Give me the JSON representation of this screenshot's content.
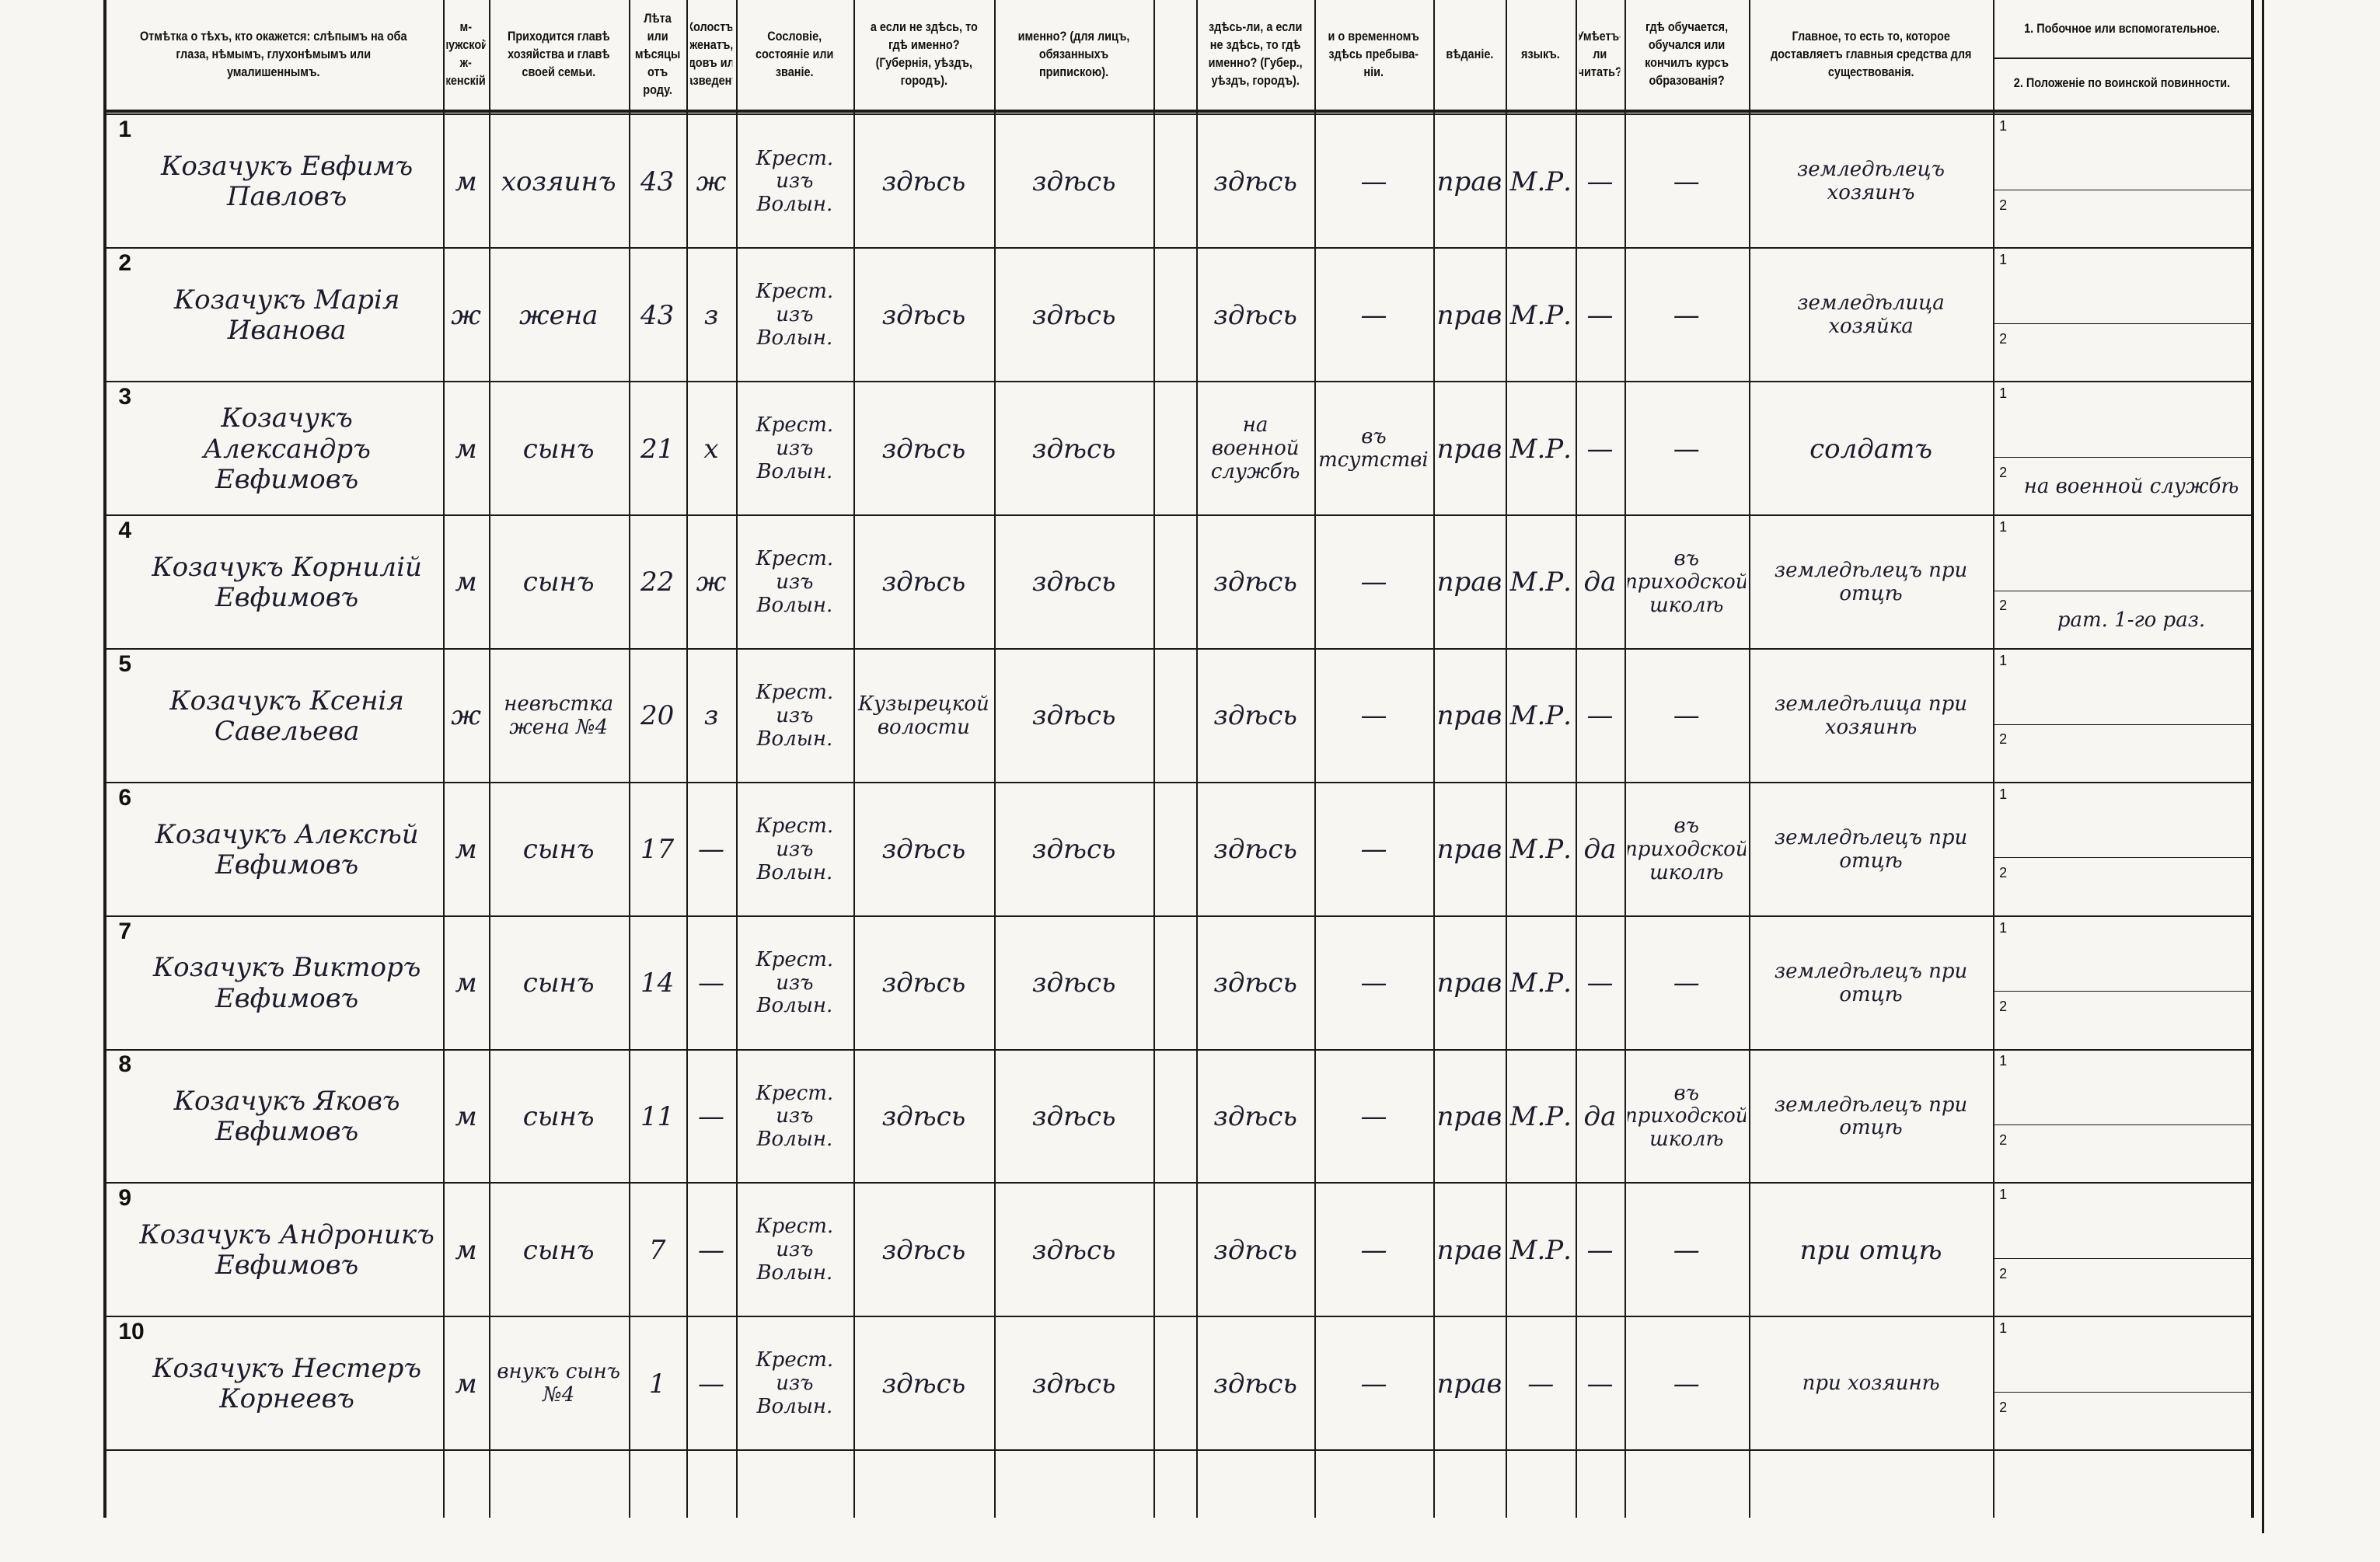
{
  "header": {
    "columns": [
      "Отмѣтка о тѣхъ, кто окажется: слѣпымъ на оба глаза, нѣмымъ, глухонѣмымъ или умалишеннымъ.",
      "м-мужской. ж-женскій.",
      "Приходится главѣ хозяйства и главѣ своей семьи.",
      "Лѣта или мѣсяцы отъ роду.",
      "Холостъ, женатъ, вдовъ или разведенъ.",
      "Сословіе, состояніе или званіе.",
      "а если не здѣсь, то гдѣ именно? (Губернія, уѣздъ, городъ).",
      "именно? (для лицъ, обязанныхъ припискою).",
      "здѣсь-ли, а если не здѣсь, то гдѣ именно? (Губер., уѣздъ, городъ).",
      "и о временномъ здѣсь пребыва-ніи.",
      "вѣданіе.",
      "языкъ.",
      "Умѣетъ-ли читать?",
      "гдѣ обучается, обучался или кончилъ курсъ образованія?",
      "Главное, то есть то, которое доставляетъ главныя средства для существованія."
    ],
    "secondary": "1. Побочное или вспомогательное.",
    "military": "2. Положеніе по воинской повинности.",
    "sub_labels": [
      "1",
      "2"
    ]
  },
  "rows": [
    {
      "number": "1",
      "name": "Козачукъ Евфимъ Павловъ",
      "sex": "м",
      "relation": "хозяинъ",
      "age": "43",
      "marital": "ж",
      "estate": "Крест. изъ Волын.",
      "birthplace": "здѣсь",
      "registered": "здѣсь",
      "residence": "здѣсь",
      "temporary": "—",
      "religion": "прав",
      "language": "М.Р.",
      "literacy": "—",
      "education": "—",
      "occupation": "земледѣлецъ хозяинъ"
    },
    {
      "number": "2",
      "name": "Козачукъ Марія Иванова",
      "sex": "ж",
      "relation": "жена",
      "age": "43",
      "marital": "з",
      "estate": "Крест. изъ Волын.",
      "birthplace": "здѣсь",
      "registered": "здѣсь",
      "residence": "здѣсь",
      "temporary": "—",
      "religion": "прав",
      "language": "М.Р.",
      "literacy": "—",
      "education": "—",
      "occupation": "земледѣлица хозяйка"
    },
    {
      "number": "3",
      "name": "Козачукъ Александръ Евфимовъ",
      "sex": "м",
      "relation": "сынъ",
      "age": "21",
      "marital": "х",
      "estate": "Крест. изъ Волын.",
      "birthplace": "здѣсь",
      "registered": "здѣсь",
      "residence": "на военной службѣ",
      "temporary": "въ отсутствіи",
      "religion": "прав",
      "language": "М.Р.",
      "literacy": "—",
      "education": "—",
      "occupation": "солдатъ",
      "military": "на военной службѣ"
    },
    {
      "number": "4",
      "name": "Козачукъ Корнилій Евфимовъ",
      "sex": "м",
      "relation": "сынъ",
      "age": "22",
      "marital": "ж",
      "estate": "Крест. изъ Волын.",
      "birthplace": "здѣсь",
      "registered": "здѣсь",
      "residence": "здѣсь",
      "temporary": "—",
      "religion": "прав",
      "language": "М.Р.",
      "literacy": "да",
      "education": "въ приходской школѣ",
      "occupation": "земледѣлецъ при отцѣ",
      "military": "рат. 1-го раз."
    },
    {
      "number": "5",
      "name": "Козачукъ Ксенія Савельева",
      "sex": "ж",
      "relation": "невѣстка жена №4",
      "age": "20",
      "marital": "з",
      "estate": "Крест. изъ Волын.",
      "birthplace": "Кузырецкой волости",
      "registered": "здѣсь",
      "residence": "здѣсь",
      "temporary": "—",
      "religion": "прав",
      "language": "М.Р.",
      "literacy": "—",
      "education": "—",
      "occupation": "земледѣлица при хозяинѣ"
    },
    {
      "number": "6",
      "name": "Козачукъ Алексѣй Евфимовъ",
      "sex": "м",
      "relation": "сынъ",
      "age": "17",
      "marital": "—",
      "estate": "Крест. изъ Волын.",
      "birthplace": "здѣсь",
      "registered": "здѣсь",
      "residence": "здѣсь",
      "temporary": "—",
      "religion": "прав",
      "language": "М.Р.",
      "literacy": "да",
      "education": "въ приходской школѣ",
      "occupation": "земледѣлецъ при отцѣ"
    },
    {
      "number": "7",
      "name": "Козачукъ Викторъ Евфимовъ",
      "sex": "м",
      "relation": "сынъ",
      "age": "14",
      "marital": "—",
      "estate": "Крест. изъ Волын.",
      "birthplace": "здѣсь",
      "registered": "здѣсь",
      "residence": "здѣсь",
      "temporary": "—",
      "religion": "прав",
      "language": "М.Р.",
      "literacy": "—",
      "education": "—",
      "occupation": "земледѣлецъ при отцѣ"
    },
    {
      "number": "8",
      "name": "Козачукъ Яковъ Евфимовъ",
      "sex": "м",
      "relation": "сынъ",
      "age": "11",
      "marital": "—",
      "estate": "Крест. изъ Волын.",
      "birthplace": "здѣсь",
      "registered": "здѣсь",
      "residence": "здѣсь",
      "temporary": "—",
      "religion": "прав",
      "language": "М.Р.",
      "literacy": "да",
      "education": "въ приходской школѣ",
      "occupation": "земледѣлецъ при отцѣ"
    },
    {
      "number": "9",
      "name": "Козачукъ Андроникъ Евфимовъ",
      "sex": "м",
      "relation": "сынъ",
      "age": "7",
      "marital": "—",
      "estate": "Крест. изъ Волын.",
      "birthplace": "здѣсь",
      "registered": "здѣсь",
      "residence": "здѣсь",
      "temporary": "—",
      "religion": "прав",
      "language": "М.Р.",
      "literacy": "—",
      "education": "—",
      "occupation": "при отцѣ"
    },
    {
      "number": "10",
      "name": "Козачукъ Нестеръ Корнеевъ",
      "sex": "м",
      "relation": "внукъ сынъ №4",
      "age": "1",
      "marital": "—",
      "estate": "Крест. изъ Волын.",
      "birthplace": "здѣсь",
      "registered": "здѣсь",
      "residence": "здѣсь",
      "temporary": "—",
      "religion": "прав",
      "language": "—",
      "literacy": "—",
      "education": "—",
      "occupation": "при хозяинѣ"
    }
  ]
}
